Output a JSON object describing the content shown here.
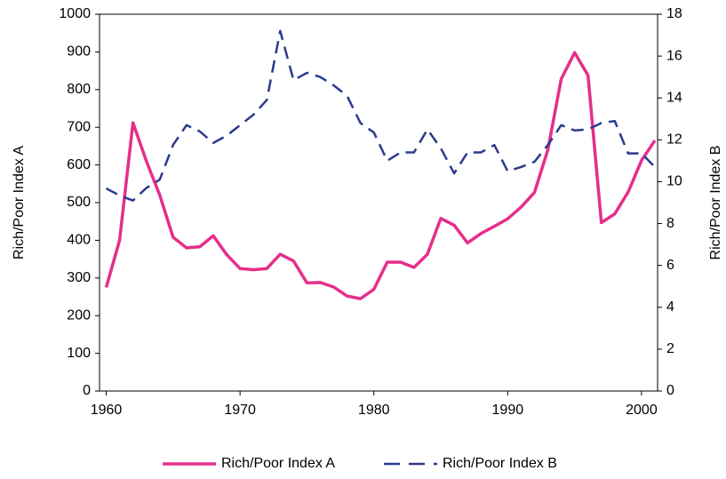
{
  "chart_data": {
    "type": "line",
    "x": [
      1960,
      1961,
      1962,
      1963,
      1964,
      1965,
      1966,
      1967,
      1968,
      1969,
      1970,
      1971,
      1972,
      1973,
      1974,
      1975,
      1976,
      1977,
      1978,
      1979,
      1980,
      1981,
      1982,
      1983,
      1984,
      1985,
      1986,
      1987,
      1988,
      1989,
      1990,
      1991,
      1992,
      1993,
      1994,
      1995,
      1996,
      1997,
      1998,
      1999,
      2000,
      2001
    ],
    "series": [
      {
        "name": "Rich/Poor Index A",
        "color": "#e62e8b",
        "axis": "y",
        "values": [
          275,
          400,
          712,
          610,
          520,
          408,
          380,
          383,
          412,
          362,
          325,
          322,
          325,
          363,
          345,
          287,
          288,
          276,
          252,
          245,
          270,
          342,
          342,
          328,
          363,
          458,
          440,
          393,
          418,
          437,
          457,
          488,
          527,
          640,
          828,
          898,
          838,
          447,
          470,
          528,
          612,
          665
        ]
      },
      {
        "name": "Rich/Poor Index B",
        "color": "#2b3a8c",
        "axis": "y2",
        "dashed": true,
        "values": [
          9.68,
          9.34,
          9.1,
          9.7,
          10.1,
          11.76,
          12.7,
          12.4,
          11.85,
          12.2,
          12.7,
          13.2,
          13.9,
          17.2,
          14.85,
          15.2,
          15.0,
          14.6,
          14.1,
          12.8,
          12.35,
          11.0,
          11.4,
          11.4,
          12.5,
          11.6,
          10.4,
          11.4,
          11.4,
          11.75,
          10.5,
          10.7,
          10.95,
          11.75,
          12.7,
          12.45,
          12.5,
          12.8,
          12.9,
          11.35,
          11.35,
          10.7
        ]
      }
    ],
    "ylabel": "Rich/Poor Index A",
    "y2label": "Rich/Poor Index B",
    "xlim": [
      1959.5,
      2001.2
    ],
    "xticks": [
      1960,
      1970,
      1980,
      1990,
      2000
    ],
    "ylim": [
      0,
      1000
    ],
    "yticks": [
      0,
      100,
      200,
      300,
      400,
      500,
      600,
      700,
      800,
      900,
      1000
    ],
    "y2lim": [
      0,
      18
    ],
    "y2ticks": [
      0,
      2,
      4,
      6,
      8,
      10,
      12,
      14,
      16,
      18
    ],
    "legend": "bottom"
  }
}
